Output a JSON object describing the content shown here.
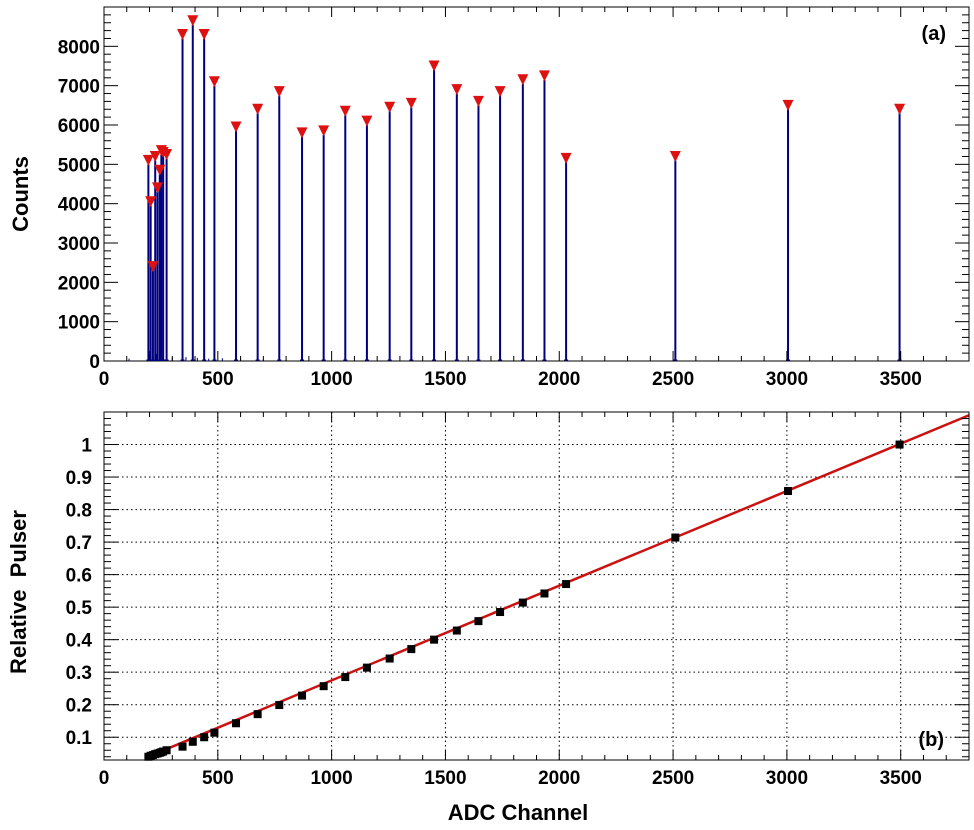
{
  "colors": {
    "spectrum": "#00007f",
    "peak_marker": "#dd1111",
    "fit_line": "#cc1111",
    "data_point": "#000000",
    "grid": "#000000",
    "background": "#ffffff"
  },
  "chart_data": [
    {
      "type": "bar",
      "panel_label": "(a)",
      "title": "",
      "xlabel": "",
      "ylabel": "Counts",
      "xlim": [
        0,
        3800
      ],
      "ylim": [
        0,
        9000
      ],
      "grid": false,
      "xticks": [
        0,
        500,
        1000,
        1500,
        2000,
        2500,
        3000,
        3500
      ],
      "yticks": [
        0,
        1000,
        2000,
        3000,
        4000,
        5000,
        6000,
        7000,
        8000
      ],
      "peaks": {
        "x": [
          195,
          205,
          215,
          225,
          235,
          245,
          252,
          260,
          275,
          345,
          390,
          440,
          485,
          580,
          675,
          770,
          870,
          965,
          1060,
          1155,
          1255,
          1350,
          1450,
          1550,
          1645,
          1740,
          1840,
          1935,
          2030,
          2510,
          3005,
          3495
        ],
        "counts": [
          5100,
          4050,
          2400,
          5200,
          4400,
          4850,
          5350,
          5300,
          5250,
          8300,
          8650,
          8300,
          7100,
          5950,
          6400,
          6850,
          5800,
          5850,
          6350,
          6100,
          6450,
          6550,
          7500,
          6900,
          6600,
          6850,
          7150,
          7250,
          5150,
          5200,
          6500,
          6400
        ]
      },
      "noise": {
        "x": [
          110,
          200,
          230,
          300,
          360,
          410,
          460,
          520,
          600,
          700,
          800
        ],
        "counts": [
          60,
          250,
          180,
          90,
          100,
          80,
          60,
          70,
          50,
          40,
          30
        ]
      }
    },
    {
      "type": "scatter",
      "panel_label": "(b)",
      "title": "",
      "xlabel": "ADC Channel",
      "ylabel": "Relative  Pulser",
      "xlim": [
        0,
        3800
      ],
      "ylim": [
        0.03,
        1.1
      ],
      "grid": true,
      "xticks": [
        0,
        500,
        1000,
        1500,
        2000,
        2500,
        3000,
        3500
      ],
      "yticks": [
        0.1,
        0.2,
        0.3,
        0.4,
        0.5,
        0.6,
        0.7,
        0.8,
        0.9,
        1
      ],
      "points": {
        "x": [
          195,
          205,
          215,
          225,
          235,
          245,
          252,
          260,
          275,
          345,
          390,
          440,
          485,
          580,
          675,
          770,
          870,
          965,
          1060,
          1155,
          1255,
          1350,
          1450,
          1550,
          1645,
          1740,
          1840,
          1935,
          2030,
          2510,
          3005,
          3495
        ],
        "y": [
          0.04,
          0.043,
          0.045,
          0.048,
          0.05,
          0.052,
          0.054,
          0.056,
          0.06,
          0.071,
          0.086,
          0.1,
          0.114,
          0.143,
          0.171,
          0.199,
          0.228,
          0.257,
          0.285,
          0.314,
          0.342,
          0.371,
          0.4,
          0.428,
          0.457,
          0.485,
          0.514,
          0.542,
          0.571,
          0.714,
          0.857,
          1.0
        ]
      },
      "fit_line": {
        "x": [
          180,
          3800
        ],
        "y": [
          0.036,
          1.09
        ]
      }
    }
  ]
}
